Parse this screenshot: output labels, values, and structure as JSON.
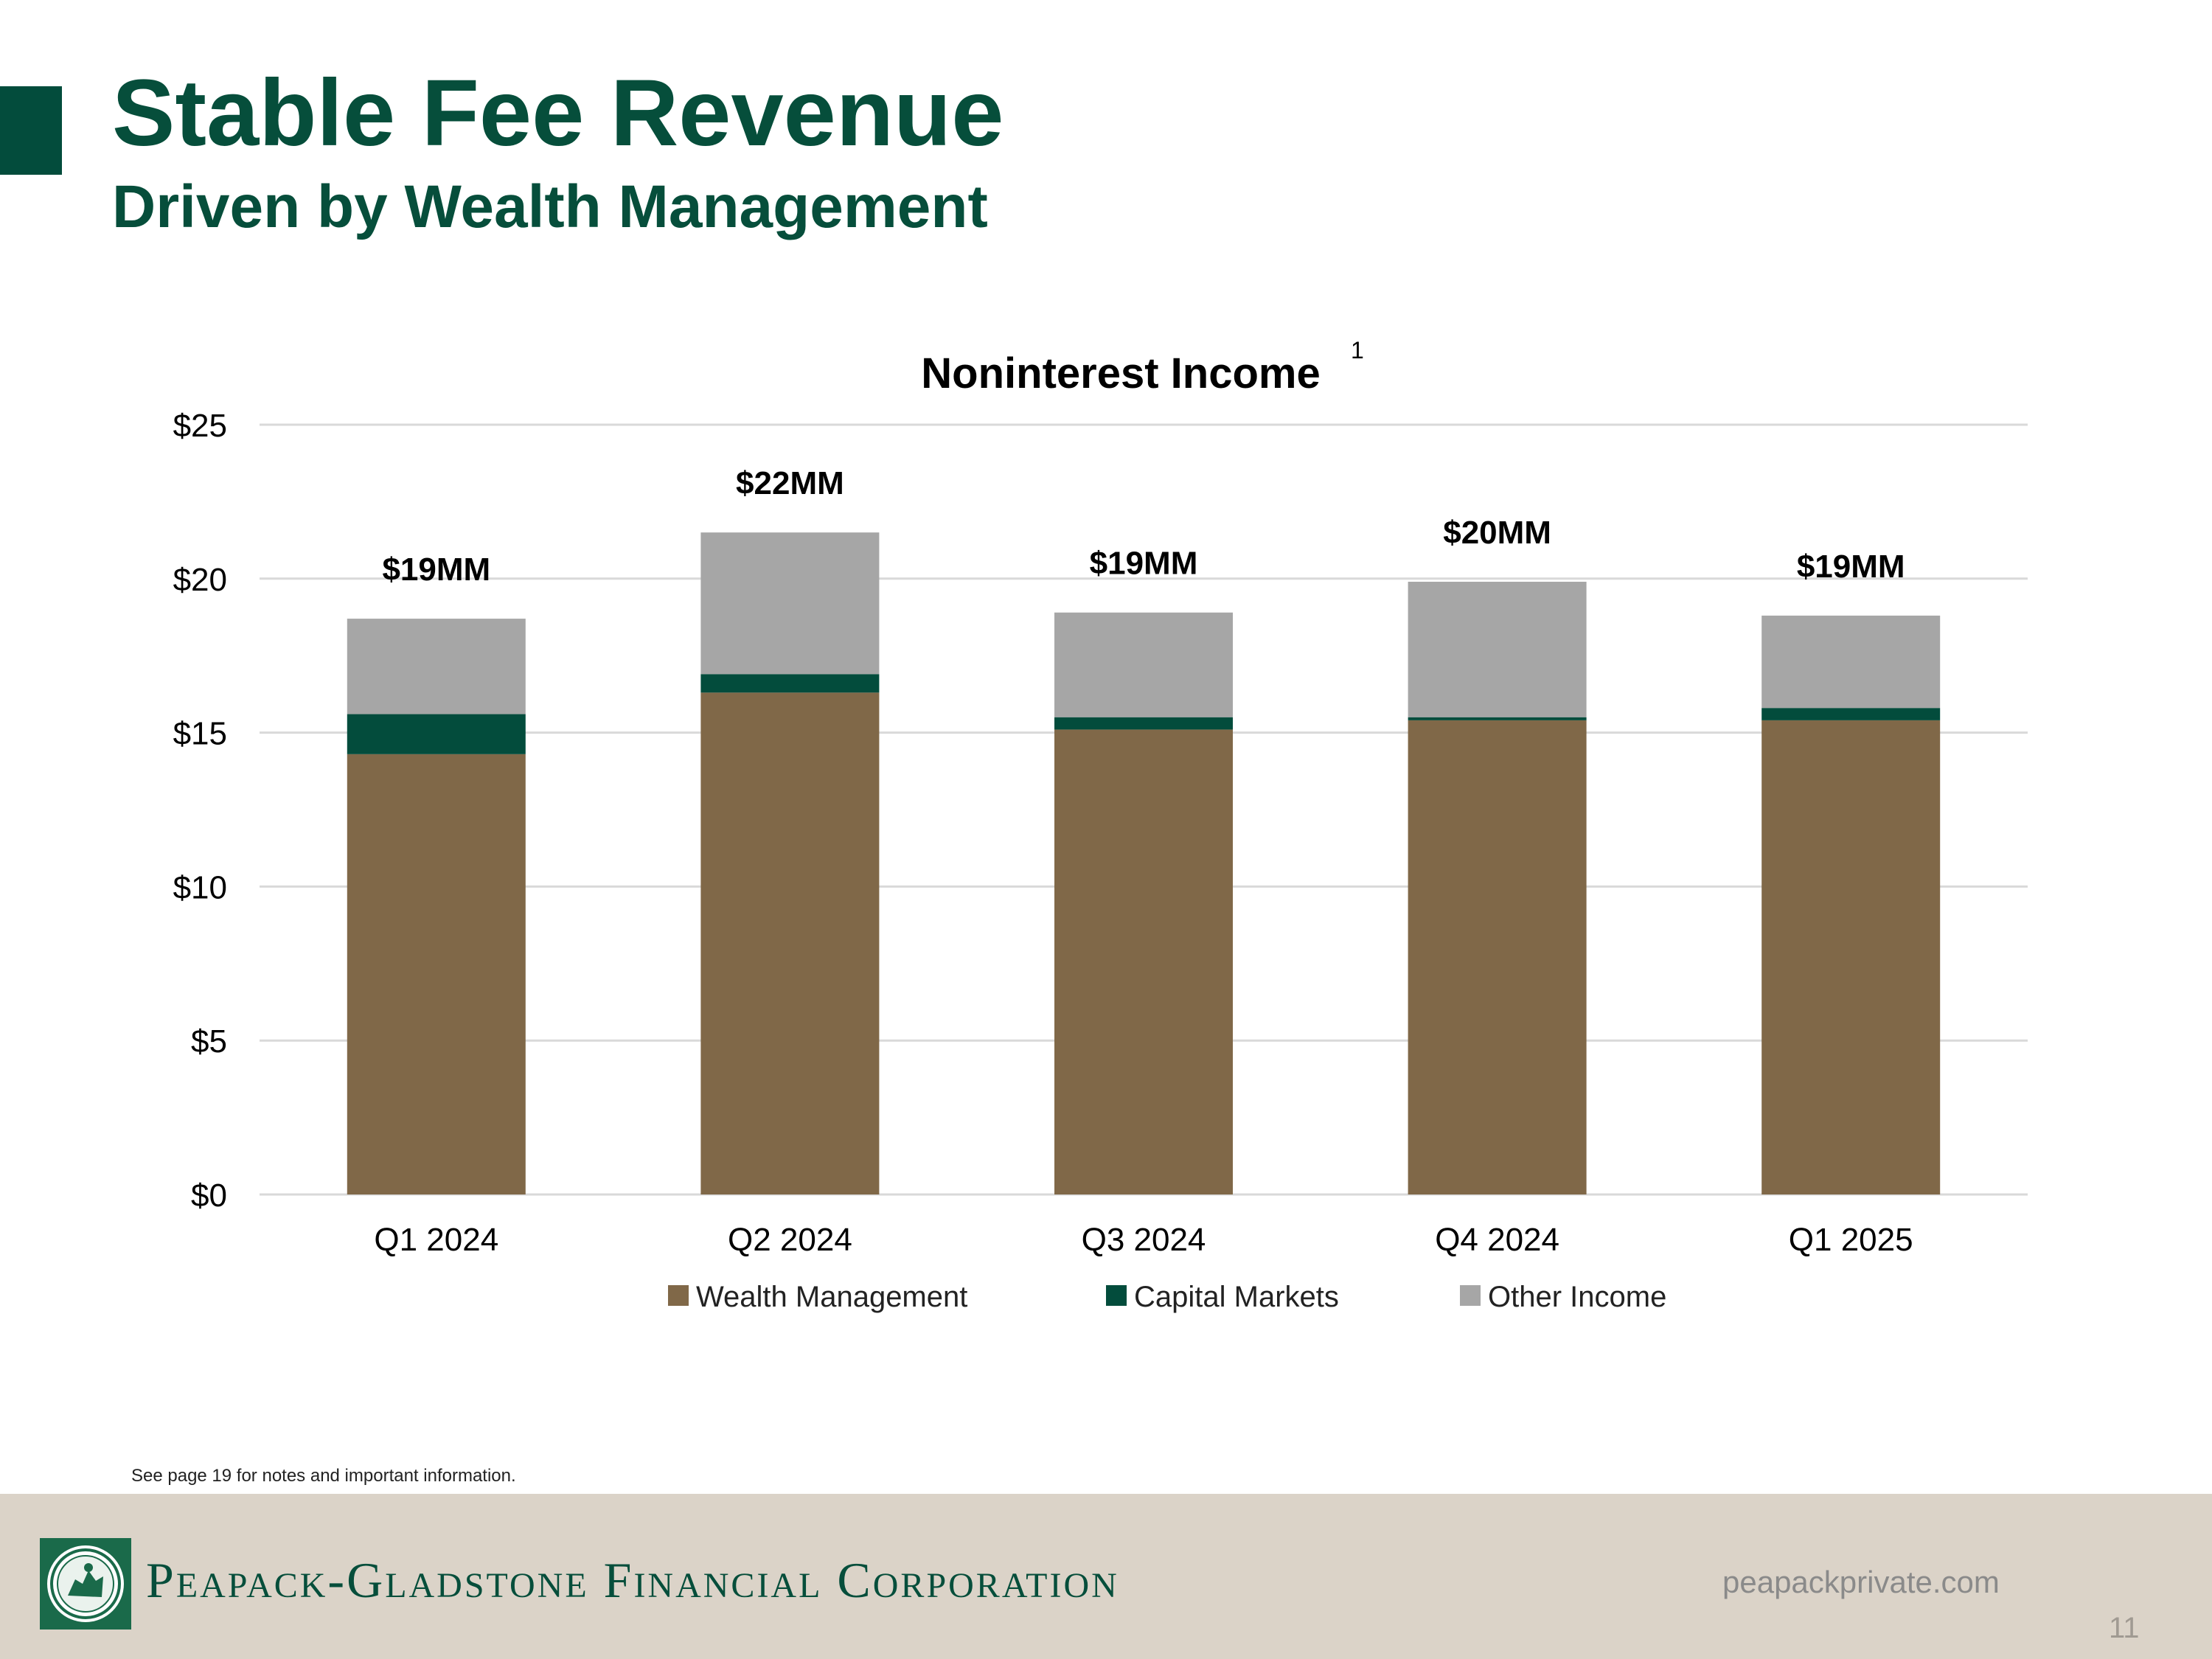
{
  "slide": {
    "title": "Stable Fee Revenue",
    "subtitle": "Driven by Wealth Management",
    "note": "See page 19 for notes and important information.",
    "company": "Peapack-Gladstone Financial Corporation",
    "website": "peapackprivate.com",
    "page_number": "11"
  },
  "colors": {
    "brand_green": "#064e3b",
    "wealth": "#806848",
    "capital": "#034c3c",
    "other": "#a6a6a6",
    "footer_bg": "#dbd3c8"
  },
  "chart_data": {
    "type": "bar",
    "stacked": true,
    "title": "Noninterest Income",
    "title_superscript": "1",
    "categories": [
      "Q1 2024",
      "Q2 2024",
      "Q3 2024",
      "Q4 2024",
      "Q1 2025"
    ],
    "series": [
      {
        "name": "Wealth Management",
        "color": "#806848",
        "values": [
          14.3,
          16.3,
          15.1,
          15.4,
          15.4
        ]
      },
      {
        "name": "Capital Markets",
        "color": "#034c3c",
        "values": [
          1.3,
          0.6,
          0.4,
          0.1,
          0.4
        ]
      },
      {
        "name": "Other Income",
        "color": "#a6a6a6",
        "values": [
          3.1,
          4.6,
          3.4,
          4.4,
          3.0
        ]
      }
    ],
    "totals_labels": [
      "$19MM",
      "$22MM",
      "$19MM",
      "$20MM",
      "$19MM"
    ],
    "yticks": [
      0,
      5,
      10,
      15,
      20,
      25
    ],
    "ytick_labels": [
      "$0",
      "$5",
      "$10",
      "$15",
      "$20",
      "$25"
    ],
    "ylim": [
      0,
      25
    ],
    "grid": true,
    "legend": "bottom"
  }
}
